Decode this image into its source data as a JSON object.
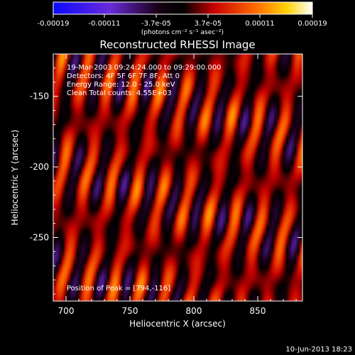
{
  "colorbar": {
    "ticks": [
      "-0.00019",
      "-0.00011",
      "-3.7e-05",
      "3.7e-05",
      "0.00011",
      "0.00019"
    ],
    "units": "(photons cm⁻² s⁻¹ asec⁻²)",
    "colors": [
      "#0a0aff",
      "#6a2ad8",
      "#1a0018",
      "#000000",
      "#c80000",
      "#ff6a00",
      "#ffd200",
      "#ffffff"
    ]
  },
  "chart_data": {
    "type": "heatmap",
    "title": "Reconstructed RHESSI Image",
    "xlabel": "Heliocentric X (arcsec)",
    "ylabel": "Heliocentric Y (arcsec)",
    "xlim": [
      690,
      885
    ],
    "ylim": [
      -295,
      -120
    ],
    "xticks": [
      700,
      750,
      800,
      850
    ],
    "yticks": [
      -150,
      -200,
      -250
    ],
    "xtick_labels": [
      "700",
      "750",
      "800",
      "850"
    ],
    "ytick_labels": [
      "-150",
      "-200",
      "-250"
    ],
    "value_range": [
      -0.00019,
      0.00019
    ],
    "annotations": [
      "19-Mar-2003 09:24:24.000 to 09:29:00.000",
      "Detectors: 4F 5F 6F 7F 8F, Att 0",
      "Energy Range: 12.0 - 25.0 keV",
      "Clean    Total counts: 4.55E+03"
    ],
    "peak_label": "Position of Peak = [794,-116]"
  },
  "footer": {
    "date": "10-Jun-2013 18:23"
  }
}
